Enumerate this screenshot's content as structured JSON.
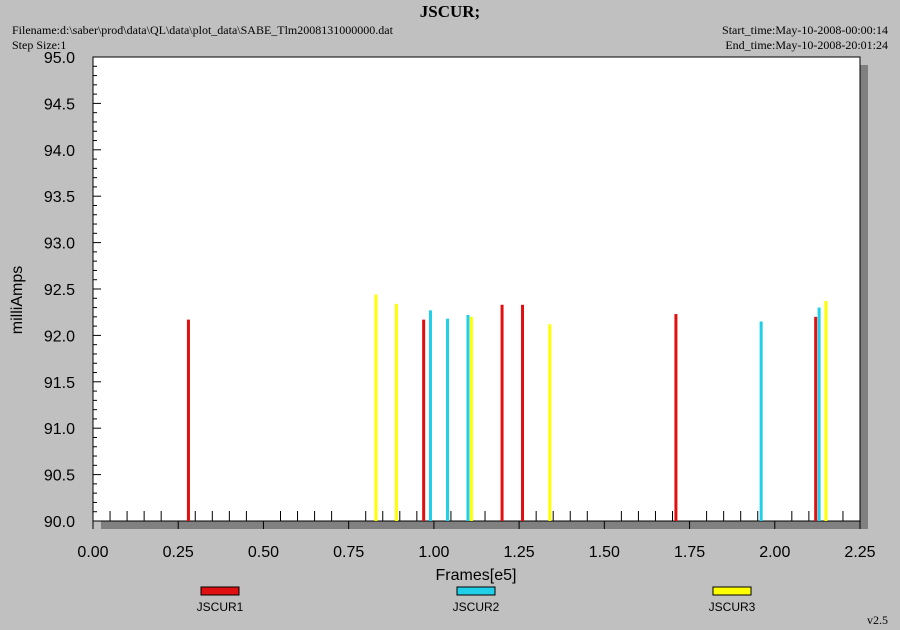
{
  "header": {
    "title": "JSCUR;",
    "filename": "Filename:d:\\saber\\prod\\data\\QL\\data\\plot_data\\SABE_Tlm2008131000000.dat",
    "step_size": "Step Size:1",
    "start_time": "Start_time:May-10-2008-00:00:14",
    "end_time": "End_time:May-10-2008-20:01:24"
  },
  "footer": {
    "version": "v2.5"
  },
  "colors": {
    "JSCUR1": "#e01010",
    "JSCUR2": "#20d0e8",
    "JSCUR3": "#ffff00"
  },
  "chart_data": {
    "type": "bar",
    "xlabel": "Frames[e5]",
    "ylabel": "milliAmps",
    "xlim": [
      0,
      2.25
    ],
    "ylim": [
      90.0,
      95.0
    ],
    "x_ticks": [
      "0.00",
      "0.25",
      "0.50",
      "0.75",
      "1.00",
      "1.25",
      "1.50",
      "1.75",
      "2.00",
      "2.25"
    ],
    "y_ticks": [
      "90.0",
      "90.5",
      "91.0",
      "91.5",
      "92.0",
      "92.5",
      "93.0",
      "93.5",
      "94.0",
      "94.5",
      "95.0"
    ],
    "grid": false,
    "legend_position": "bottom",
    "series": [
      {
        "name": "JSCUR1",
        "points": [
          [
            0.28,
            92.17
          ],
          [
            0.97,
            92.17
          ],
          [
            1.2,
            92.33
          ],
          [
            1.26,
            92.33
          ],
          [
            1.71,
            92.23
          ],
          [
            2.12,
            92.2
          ]
        ]
      },
      {
        "name": "JSCUR2",
        "points": [
          [
            0.99,
            92.27
          ],
          [
            1.04,
            92.18
          ],
          [
            1.1,
            92.22
          ],
          [
            1.96,
            92.15
          ],
          [
            2.13,
            92.3
          ]
        ]
      },
      {
        "name": "JSCUR3",
        "points": [
          [
            0.83,
            92.44
          ],
          [
            0.89,
            92.34
          ],
          [
            1.11,
            92.2
          ],
          [
            1.34,
            92.12
          ],
          [
            2.15,
            92.37
          ]
        ]
      }
    ]
  }
}
